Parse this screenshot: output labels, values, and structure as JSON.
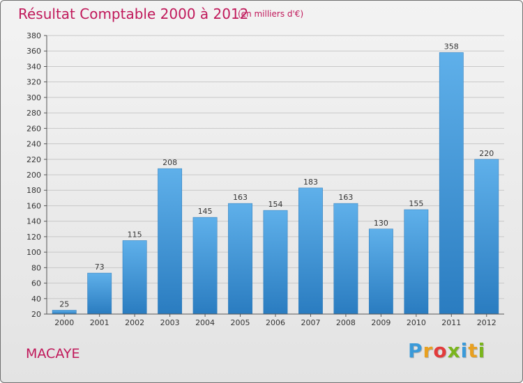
{
  "header": {
    "title": "Résultat Comptable 2000 à 2012",
    "subtitle": "(en milliers d'€)"
  },
  "footer": {
    "commune": "MACAYE",
    "brand_letters": [
      "P",
      "r",
      "o",
      "x",
      "i",
      "t",
      "i"
    ]
  },
  "colors": {
    "title": "#c0185a",
    "bar_top": "#5fb0ea",
    "bar_bottom": "#2a7cc0",
    "grid": "#c8c8c8",
    "background": "#ececec"
  },
  "chart_data": {
    "type": "bar",
    "title": "Résultat Comptable 2000 à 2012",
    "subtitle": "(en milliers d'€)",
    "xlabel": "",
    "ylabel": "",
    "categories": [
      "2000",
      "2001",
      "2002",
      "2003",
      "2004",
      "2005",
      "2006",
      "2007",
      "2008",
      "2009",
      "2010",
      "2011",
      "2012"
    ],
    "values": [
      25,
      73,
      115,
      208,
      145,
      163,
      154,
      183,
      163,
      130,
      155,
      358,
      220
    ],
    "ylim": [
      20,
      380
    ],
    "yticks": [
      20,
      40,
      60,
      80,
      100,
      120,
      140,
      160,
      180,
      200,
      220,
      240,
      260,
      280,
      300,
      320,
      340,
      360,
      380
    ],
    "grid": true,
    "legend": "none"
  }
}
